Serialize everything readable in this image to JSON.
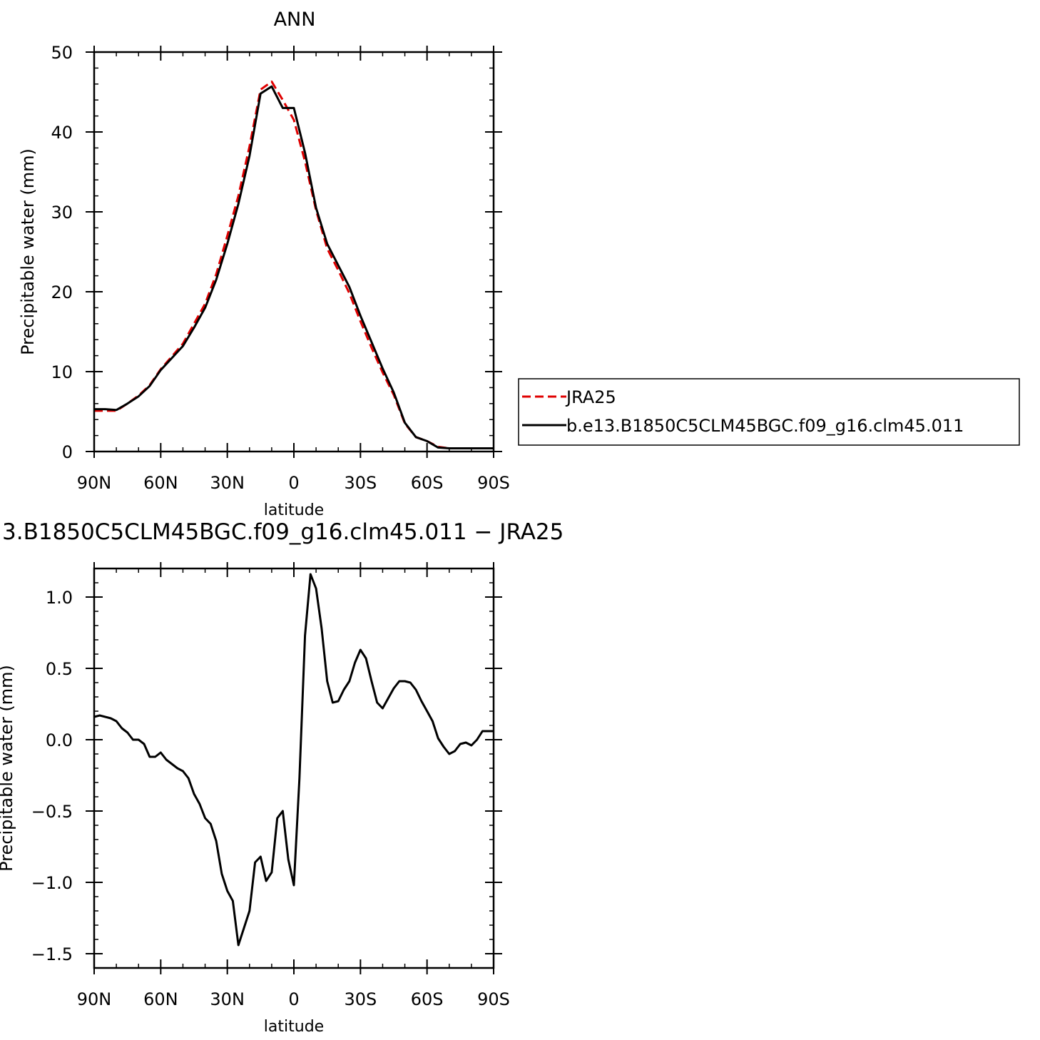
{
  "chart_data": [
    {
      "type": "line",
      "title": "ANN",
      "xlabel": "latitude",
      "ylabel": "Precipitable water (mm)",
      "xlim": [
        -90,
        90
      ],
      "ylim": [
        0,
        50
      ],
      "x_ticks": [
        -90,
        -60,
        -30,
        0,
        30,
        60,
        90
      ],
      "x_tick_labels": [
        "90N",
        "60N",
        "30N",
        "0",
        "30S",
        "60S",
        "90S"
      ],
      "y_ticks": [
        0,
        10,
        20,
        30,
        40,
        50
      ],
      "y_tick_labels": [
        "0",
        "10",
        "20",
        "30",
        "40",
        "50"
      ],
      "legend_position": "right",
      "series": [
        {
          "name": "JRA25",
          "color": "#e00000",
          "dash": "dashed",
          "x": [
            -90,
            -85,
            -80,
            -75,
            -70,
            -65,
            -60,
            -55,
            -50,
            -45,
            -40,
            -35,
            -30,
            -25,
            -20,
            -15,
            -10,
            -5,
            0,
            5,
            10,
            15,
            20,
            25,
            30,
            35,
            40,
            45,
            50,
            55,
            60,
            65,
            70,
            75,
            80,
            85,
            90
          ],
          "values": [
            5.1,
            5.1,
            5.1,
            6.0,
            7.0,
            8.3,
            10.3,
            11.9,
            13.5,
            16.0,
            18.5,
            22.2,
            27.0,
            32.0,
            38.2,
            45.3,
            46.3,
            44.0,
            41.5,
            36.3,
            30.2,
            25.4,
            22.7,
            19.8,
            16.3,
            13.0,
            9.9,
            7.1,
            3.5,
            1.8,
            1.3,
            0.6,
            0.4,
            0.4,
            0.4,
            0.4,
            0.4
          ]
        },
        {
          "name": "b.e13.B1850C5CLM45BGC.f09_g16.clm45.011",
          "color": "#000000",
          "dash": "solid",
          "x": [
            -90,
            -85,
            -80,
            -75,
            -70,
            -65,
            -60,
            -55,
            -50,
            -45,
            -40,
            -35,
            -30,
            -25,
            -20,
            -15,
            -10,
            -5,
            0,
            5,
            10,
            15,
            20,
            25,
            30,
            35,
            40,
            45,
            50,
            55,
            60,
            65,
            70,
            75,
            80,
            85,
            90
          ],
          "values": [
            5.3,
            5.3,
            5.2,
            6.0,
            6.9,
            8.2,
            10.2,
            11.7,
            13.2,
            15.5,
            18.0,
            21.5,
            26.0,
            31.0,
            37.0,
            44.8,
            45.7,
            43.0,
            43.0,
            37.4,
            30.5,
            26.0,
            23.3,
            20.6,
            17.0,
            13.7,
            10.4,
            7.4,
            3.6,
            1.8,
            1.3,
            0.5,
            0.4,
            0.4,
            0.4,
            0.4,
            0.4
          ]
        }
      ]
    },
    {
      "type": "line",
      "title": "3.B1850C5CLM45BGC.f09_g16.clm45.011 − JRA25",
      "xlabel": "latitude",
      "ylabel": "Precipitable water (mm)",
      "xlim": [
        -90,
        90
      ],
      "ylim": [
        -1.6,
        1.2
      ],
      "x_ticks": [
        -90,
        -60,
        -30,
        0,
        30,
        60,
        90
      ],
      "x_tick_labels": [
        "90N",
        "60N",
        "30N",
        "0",
        "30S",
        "60S",
        "90S"
      ],
      "y_ticks": [
        -1.5,
        -1.0,
        -0.5,
        0.0,
        0.5,
        1.0
      ],
      "y_tick_labels": [
        "−1.5",
        "−1.0",
        "−0.5",
        "0.0",
        "0.5",
        "1.0"
      ],
      "series": [
        {
          "color": "#000000",
          "dash": "solid",
          "x": [
            -90,
            -87.5,
            -85,
            -82.5,
            -80,
            -77.5,
            -75,
            -72.5,
            -70,
            -67.5,
            -65,
            -62.5,
            -60,
            -57.5,
            -55,
            -52.5,
            -50,
            -47.5,
            -45,
            -42.5,
            -40,
            -37.5,
            -35,
            -32.5,
            -30,
            -27.5,
            -25,
            -22.5,
            -20,
            -17.5,
            -15,
            -12.5,
            -10,
            -7.5,
            -5,
            -2.5,
            0,
            2.5,
            5,
            7.5,
            10,
            12.5,
            15,
            17.5,
            20,
            22.5,
            25,
            27.5,
            30,
            32.5,
            35,
            37.5,
            40,
            42.5,
            45,
            47.5,
            50,
            52.5,
            55,
            57.5,
            60,
            62.5,
            65,
            67.5,
            70,
            72.5,
            75,
            77.5,
            80,
            82.5,
            85,
            87.5,
            90
          ],
          "values": [
            0.16,
            0.17,
            0.16,
            0.15,
            0.13,
            0.08,
            0.05,
            0.0,
            0.0,
            -0.03,
            -0.12,
            -0.12,
            -0.09,
            -0.14,
            -0.17,
            -0.2,
            -0.22,
            -0.27,
            -0.38,
            -0.45,
            -0.55,
            -0.59,
            -0.71,
            -0.94,
            -1.06,
            -1.13,
            -1.44,
            -1.32,
            -1.2,
            -0.86,
            -0.82,
            -0.99,
            -0.93,
            -0.55,
            -0.5,
            -0.84,
            -1.02,
            -0.27,
            0.73,
            1.16,
            1.06,
            0.78,
            0.41,
            0.26,
            0.27,
            0.35,
            0.41,
            0.54,
            0.63,
            0.57,
            0.41,
            0.26,
            0.22,
            0.29,
            0.36,
            0.41,
            0.41,
            0.4,
            0.35,
            0.27,
            0.2,
            0.13,
            0.01,
            -0.05,
            -0.1,
            -0.08,
            -0.03,
            -0.02,
            -0.04,
            -0.0,
            0.06,
            0.06,
            0.06
          ]
        }
      ]
    }
  ]
}
